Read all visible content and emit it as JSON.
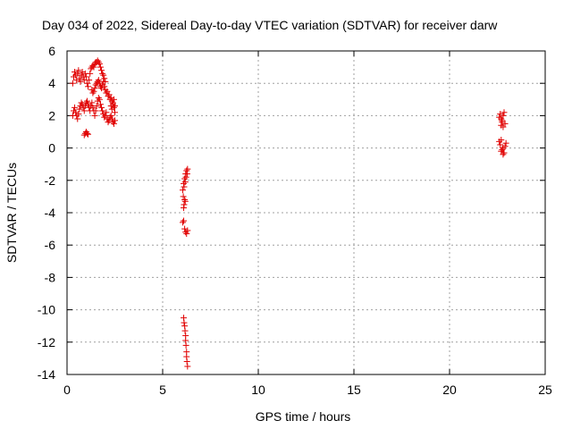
{
  "chart_data": {
    "type": "scatter",
    "title": "Day 034 of 2022, Sidereal Day-to-day VTEC variation (SDTVAR) for receiver darw",
    "xlabel": "GPS time / hours",
    "ylabel": "SDTVAR / TECUs",
    "xlim": [
      0,
      25
    ],
    "ylim": [
      -14,
      6
    ],
    "xticks": [
      0,
      5,
      10,
      15,
      20,
      25
    ],
    "yticks": [
      -14,
      -12,
      -10,
      -8,
      -6,
      -4,
      -2,
      0,
      2,
      4,
      6
    ],
    "grid": true,
    "marker": "+",
    "color": "#e00000",
    "series": [
      {
        "name": "SDTVAR",
        "points": [
          [
            0.3,
            4.0
          ],
          [
            0.35,
            4.4
          ],
          [
            0.4,
            4.7
          ],
          [
            0.45,
            4.5
          ],
          [
            0.5,
            4.2
          ],
          [
            0.55,
            4.6
          ],
          [
            0.6,
            4.8
          ],
          [
            0.65,
            4.3
          ],
          [
            0.7,
            4.1
          ],
          [
            0.75,
            4.5
          ],
          [
            0.8,
            4.7
          ],
          [
            0.85,
            4.4
          ],
          [
            0.9,
            4.2
          ],
          [
            0.95,
            4.6
          ],
          [
            1.0,
            4.4
          ],
          [
            1.05,
            4.0
          ],
          [
            1.1,
            3.8
          ],
          [
            1.15,
            4.2
          ],
          [
            1.2,
            4.6
          ],
          [
            1.25,
            4.9
          ],
          [
            1.3,
            5.0
          ],
          [
            1.35,
            5.1
          ],
          [
            1.4,
            5.0
          ],
          [
            1.45,
            5.2
          ],
          [
            1.5,
            5.3
          ],
          [
            1.55,
            5.3
          ],
          [
            1.6,
            5.4
          ],
          [
            1.65,
            5.3
          ],
          [
            1.7,
            5.2
          ],
          [
            1.75,
            5.0
          ],
          [
            1.8,
            4.8
          ],
          [
            1.85,
            4.6
          ],
          [
            1.9,
            4.5
          ],
          [
            1.95,
            4.3
          ],
          [
            2.0,
            4.1
          ],
          [
            1.3,
            3.6
          ],
          [
            1.35,
            3.4
          ],
          [
            1.4,
            3.5
          ],
          [
            1.45,
            3.7
          ],
          [
            1.5,
            3.9
          ],
          [
            1.55,
            4.0
          ],
          [
            1.6,
            4.1
          ],
          [
            1.65,
            4.2
          ],
          [
            1.7,
            4.0
          ],
          [
            1.75,
            3.8
          ],
          [
            1.8,
            3.7
          ],
          [
            1.85,
            3.9
          ],
          [
            1.9,
            4.1
          ],
          [
            1.95,
            3.8
          ],
          [
            2.0,
            3.6
          ],
          [
            2.05,
            3.4
          ],
          [
            2.1,
            3.5
          ],
          [
            2.15,
            3.2
          ],
          [
            2.2,
            3.3
          ],
          [
            2.25,
            3.0
          ],
          [
            2.3,
            3.1
          ],
          [
            2.35,
            2.9
          ],
          [
            2.4,
            2.7
          ],
          [
            2.45,
            2.5
          ],
          [
            2.5,
            2.2
          ],
          [
            0.3,
            2.0
          ],
          [
            0.35,
            2.3
          ],
          [
            0.4,
            2.5
          ],
          [
            0.45,
            2.2
          ],
          [
            0.5,
            2.0
          ],
          [
            0.55,
            1.8
          ],
          [
            0.6,
            2.1
          ],
          [
            0.65,
            2.4
          ],
          [
            0.7,
            2.6
          ],
          [
            0.75,
            2.8
          ],
          [
            0.8,
            2.7
          ],
          [
            0.85,
            2.5
          ],
          [
            0.9,
            2.3
          ],
          [
            0.95,
            2.6
          ],
          [
            1.0,
            2.8
          ],
          [
            1.05,
            2.9
          ],
          [
            1.1,
            2.7
          ],
          [
            1.15,
            2.5
          ],
          [
            1.2,
            2.3
          ],
          [
            1.25,
            2.6
          ],
          [
            1.3,
            2.8
          ],
          [
            1.35,
            2.5
          ],
          [
            1.4,
            2.3
          ],
          [
            1.45,
            2.0
          ],
          [
            1.5,
            2.3
          ],
          [
            1.55,
            2.6
          ],
          [
            1.6,
            2.9
          ],
          [
            1.65,
            3.1
          ],
          [
            1.7,
            3.0
          ],
          [
            1.75,
            2.7
          ],
          [
            1.8,
            2.5
          ],
          [
            1.85,
            2.3
          ],
          [
            1.9,
            2.1
          ],
          [
            1.95,
            1.9
          ],
          [
            2.0,
            2.0
          ],
          [
            2.05,
            2.2
          ],
          [
            2.1,
            1.8
          ],
          [
            2.15,
            1.6
          ],
          [
            2.2,
            1.7
          ],
          [
            2.25,
            1.9
          ],
          [
            2.3,
            2.0
          ],
          [
            2.35,
            1.8
          ],
          [
            2.4,
            1.6
          ],
          [
            2.45,
            1.5
          ],
          [
            2.5,
            1.7
          ],
          [
            2.3,
            2.6
          ],
          [
            2.35,
            2.4
          ],
          [
            2.4,
            2.8
          ],
          [
            2.45,
            3.0
          ],
          [
            2.5,
            2.6
          ],
          [
            0.9,
            0.8
          ],
          [
            0.95,
            0.9
          ],
          [
            1.0,
            1.0
          ],
          [
            1.05,
            0.9
          ],
          [
            1.1,
            0.85
          ],
          [
            6.05,
            -2.6
          ],
          [
            6.1,
            -2.2
          ],
          [
            6.12,
            -2.4
          ],
          [
            6.15,
            -1.9
          ],
          [
            6.18,
            -2.1
          ],
          [
            6.2,
            -1.6
          ],
          [
            6.22,
            -1.8
          ],
          [
            6.25,
            -1.4
          ],
          [
            6.28,
            -1.6
          ],
          [
            6.3,
            -1.3
          ],
          [
            6.08,
            -3.0
          ],
          [
            6.12,
            -3.5
          ],
          [
            6.15,
            -3.2
          ],
          [
            6.18,
            -3.3
          ],
          [
            6.1,
            -3.7
          ],
          [
            6.05,
            -4.6
          ],
          [
            6.1,
            -4.5
          ],
          [
            6.15,
            -5.0
          ],
          [
            6.2,
            -5.2
          ],
          [
            6.25,
            -5.3
          ],
          [
            6.3,
            -5.1
          ],
          [
            6.1,
            -10.5
          ],
          [
            6.12,
            -10.8
          ],
          [
            6.15,
            -11.0
          ],
          [
            6.17,
            -11.3
          ],
          [
            6.2,
            -11.6
          ],
          [
            6.2,
            -11.9
          ],
          [
            6.22,
            -12.2
          ],
          [
            6.25,
            -12.6
          ],
          [
            6.25,
            -12.9
          ],
          [
            6.27,
            -13.2
          ],
          [
            6.3,
            -13.5
          ],
          [
            22.6,
            1.9
          ],
          [
            22.65,
            2.1
          ],
          [
            22.7,
            1.8
          ],
          [
            22.75,
            1.6
          ],
          [
            22.8,
            2.0
          ],
          [
            22.85,
            2.2
          ],
          [
            22.7,
            1.4
          ],
          [
            22.8,
            1.3
          ],
          [
            22.9,
            1.5
          ],
          [
            22.75,
            1.7
          ],
          [
            22.6,
            0.4
          ],
          [
            22.65,
            0.2
          ],
          [
            22.7,
            0.5
          ],
          [
            22.75,
            -0.1
          ],
          [
            22.8,
            0.0
          ],
          [
            22.85,
            -0.3
          ],
          [
            22.9,
            0.1
          ],
          [
            22.95,
            0.3
          ],
          [
            22.7,
            -0.2
          ],
          [
            22.8,
            -0.4
          ]
        ]
      }
    ]
  }
}
